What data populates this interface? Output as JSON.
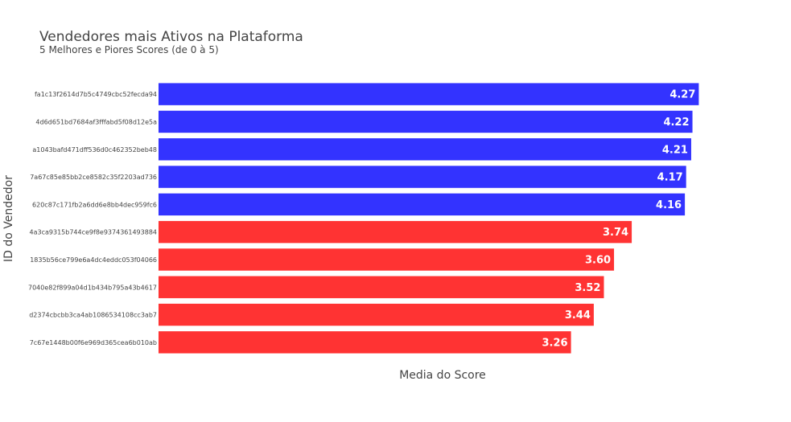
{
  "chart_data": {
    "type": "bar",
    "orientation": "horizontal",
    "title": "Vendedores mais Ativos na Plataforma",
    "subtitle": "5 Melhores e Piores Scores (de 0 à 5)",
    "xlabel": "Media do Score",
    "ylabel": "ID do Vendedor",
    "xlim": [
      0,
      4.49
    ],
    "grid": false,
    "legend": "none",
    "categories": [
      "fa1c13f2614d7b5c4749cbc52fecda94",
      "4d6d651bd7684af3fffabd5f08d12e5a",
      "a1043bafd471dff536d0c462352beb48",
      "7a67c85e85bb2ce8582c35f2203ad736",
      "620c87c171fb2a6dd6e8bb4dec959fc6",
      "4a3ca9315b744ce9f8e9374361493884",
      "1835b56ce799e6a4dc4eddc053f04066",
      "7040e82f899a04d1b434b795a43b4617",
      "d2374cbcbb3ca4ab1086534108cc3ab7",
      "7c67e1448b00f6e969d365cea6b010ab"
    ],
    "values": [
      4.27,
      4.22,
      4.21,
      4.17,
      4.16,
      3.74,
      3.6,
      3.52,
      3.44,
      3.26
    ],
    "value_labels": [
      "4.27",
      "4.22",
      "4.21",
      "4.17",
      "4.16",
      "3.74",
      "3.60",
      "3.52",
      "3.44",
      "3.26"
    ],
    "colors": [
      "#3333ff",
      "#3333ff",
      "#3333ff",
      "#3333ff",
      "#3333ff",
      "#ff3333",
      "#ff3333",
      "#ff3333",
      "#ff3333",
      "#ff3333"
    ]
  }
}
